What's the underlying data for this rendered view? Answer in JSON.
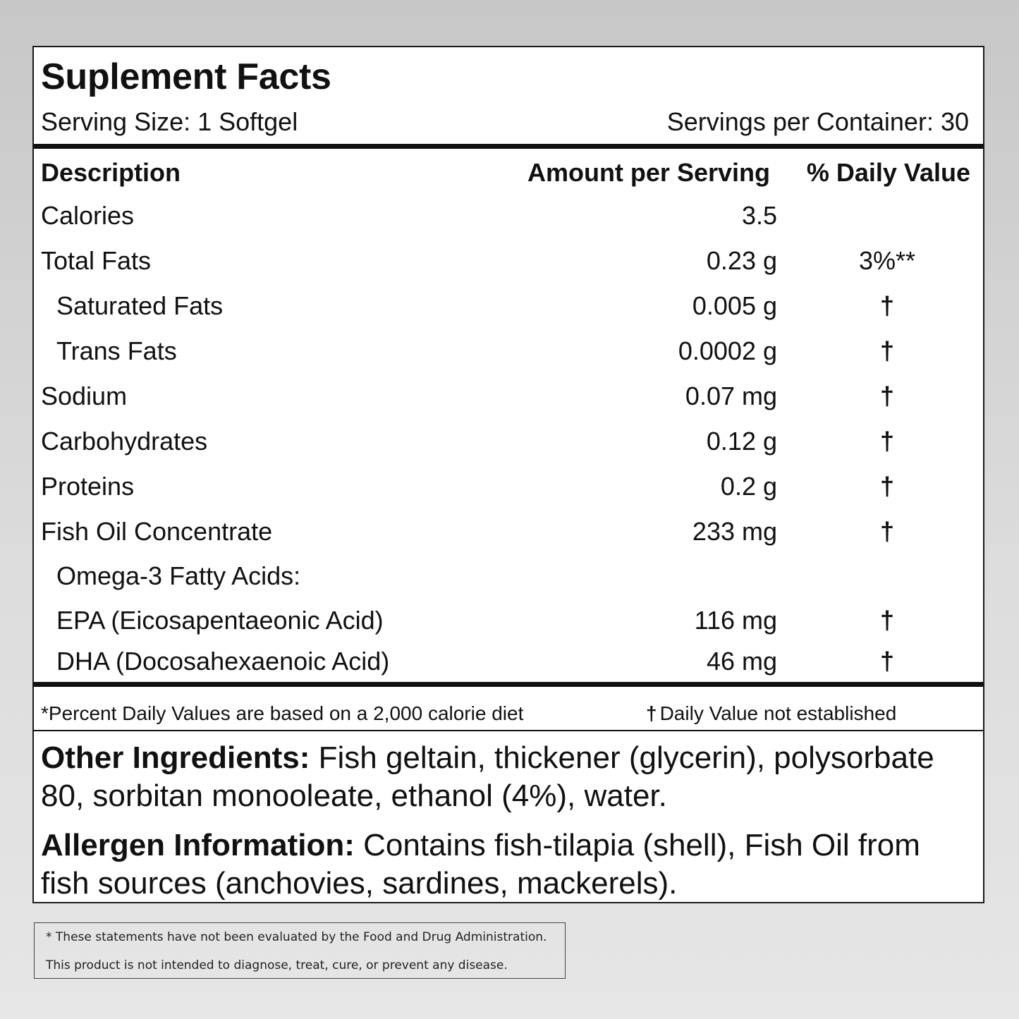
{
  "label": {
    "title": "Suplement Facts",
    "serving_size": "Serving Size: 1 Softgel",
    "servings_per_container": "Servings per Container: 30"
  },
  "table": {
    "headers": {
      "description": "Description",
      "amount": "Amount per Serving",
      "daily_value": "% Daily Value"
    },
    "rows": [
      {
        "description": "Calories",
        "amount": "3.5",
        "daily_value": ""
      },
      {
        "description": "Total Fats",
        "amount": "0.23 g",
        "daily_value": "3%**"
      },
      {
        "description": "Saturated Fats",
        "amount": "0.005 g",
        "daily_value": "†"
      },
      {
        "description": "Trans Fats",
        "amount": "0.0002 g",
        "daily_value": "†"
      },
      {
        "description": "Sodium",
        "amount": "0.07 mg",
        "daily_value": "†"
      },
      {
        "description": "Carbohydrates",
        "amount": "0.12 g",
        "daily_value": "†"
      },
      {
        "description": "Proteins",
        "amount": "0.2 g",
        "daily_value": "†"
      },
      {
        "description": "Fish Oil Concentrate",
        "amount": "233 mg",
        "daily_value": "†"
      },
      {
        "description": "Omega-3 Fatty Acids:",
        "amount": "",
        "daily_value": ""
      },
      {
        "description": "EPA (Eicosapentaeonic Acid)",
        "amount": "116 mg",
        "daily_value": "†"
      },
      {
        "description": "DHA (Docosahexaenoic Acid)",
        "amount": "46 mg",
        "daily_value": "†"
      }
    ]
  },
  "footnotes": {
    "percent_note": "*Percent Daily Values are based on a 2,000 calorie diet",
    "dagger_symbol": "†",
    "dagger_note": "Daily Value not established"
  },
  "other_ingredients": {
    "heading": "Other Ingredients:",
    "text": " Fish geltain, thickener (glycerin), polysorbate 80, sorbitan monooleate, ethanol (4%), water."
  },
  "allergen": {
    "heading": "Allergen Information:",
    "text": " Contains fish-tilapia (shell), Fish Oil from fish sources (anchovies, sardines, mackerels)."
  },
  "disclaimer": {
    "line1": "* These statements have not been evaluated by the Food and Drug Administration.",
    "line2": "This product is not intended to diagnose, treat, cure, or prevent any disease."
  }
}
